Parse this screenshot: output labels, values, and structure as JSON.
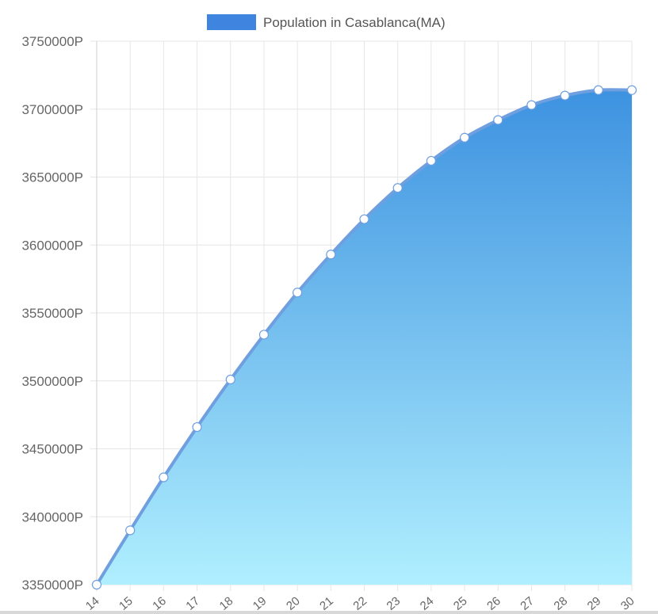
{
  "chart_data": {
    "type": "area",
    "series": [
      {
        "name": "Population in Casablanca(MA)",
        "x": [
          "14",
          "15",
          "16",
          "17",
          "18",
          "19",
          "20",
          "21",
          "22",
          "23",
          "24",
          "25",
          "26",
          "27",
          "28",
          "29",
          "30"
        ],
        "values": [
          3350000,
          3390000,
          3429000,
          3466000,
          3501000,
          3534000,
          3565000,
          3593000,
          3619000,
          3642000,
          3662000,
          3679000,
          3692000,
          3703000,
          3710000,
          3714000,
          3714000
        ]
      }
    ],
    "ylim": [
      3350000,
      3750000
    ],
    "y_ticks": [
      "3350000P",
      "3400000P",
      "3450000P",
      "3500000P",
      "3550000P",
      "3600000P",
      "3650000P",
      "3700000P",
      "3750000P"
    ],
    "grid": true,
    "legend": "top-center",
    "colors": {
      "line": "#6f9fdf",
      "fill_top": "#3d92e0",
      "fill_bottom": "#b0efff",
      "legend_swatch": "#3f84de",
      "grid": "#e6e6e6",
      "point_fill": "#ffffff"
    }
  }
}
